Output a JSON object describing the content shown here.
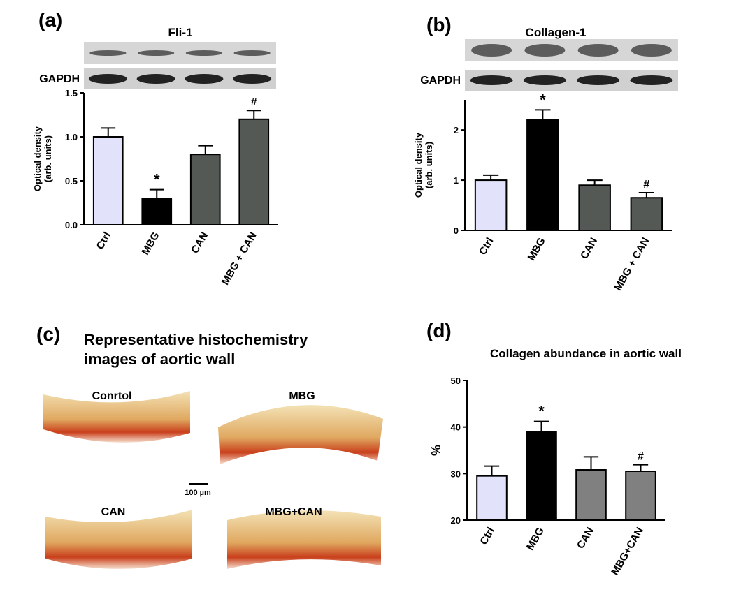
{
  "chart_data": [
    {
      "type": "bar",
      "label": "(a)",
      "title": "Fli-1",
      "blots": [
        "GAPDH"
      ],
      "categories": [
        "Ctrl",
        "MBG",
        "CAN",
        "MBG + CAN"
      ],
      "values": [
        1.0,
        0.3,
        0.8,
        1.2
      ],
      "errors": [
        0.1,
        0.1,
        0.1,
        0.1
      ],
      "annotations": [
        null,
        "*",
        null,
        "#"
      ],
      "colors": [
        "#e2e2fa",
        "#000000",
        "#555955",
        "#555955"
      ],
      "ylabel": [
        "Optical density",
        "(arb. units)"
      ],
      "ylim": [
        0,
        1.5
      ],
      "yticks": [
        {
          "value": 0,
          "label": "0.0"
        },
        {
          "value": 0.5,
          "label": "0.5"
        },
        {
          "value": 1,
          "label": "1.0"
        },
        {
          "value": 1.5,
          "label": "1.5"
        }
      ]
    },
    {
      "type": "bar",
      "label": "(b)",
      "title": "Collagen-1",
      "blots": [
        "GAPDH"
      ],
      "categories": [
        "Ctrl",
        "MBG",
        "CAN",
        "MBG + CAN"
      ],
      "values": [
        1.0,
        2.2,
        0.9,
        0.65
      ],
      "errors": [
        0.1,
        0.2,
        0.1,
        0.1
      ],
      "annotations": [
        null,
        "*",
        null,
        "#"
      ],
      "colors": [
        "#e2e2fa",
        "#000000",
        "#555955",
        "#555955"
      ],
      "ylabel": [
        "Optical density",
        "(arb. units)"
      ],
      "ylim": [
        0,
        2.6
      ],
      "yticks": [
        0,
        1,
        2
      ]
    },
    {
      "type": "bar",
      "label": "(d)",
      "title": "Collagen abundance in aortic wall",
      "categories": [
        "Ctrl",
        "MBG",
        "CAN",
        "MBG+CAN"
      ],
      "values": [
        29.5,
        39,
        30.8,
        30.5
      ],
      "errors": [
        2.1,
        2.2,
        2.8,
        1.4
      ],
      "annotations": [
        null,
        "*",
        null,
        "#"
      ],
      "colors": [
        "#e2e2fa",
        "#000000",
        "#808080",
        "#808080"
      ],
      "ylabel": [
        "%"
      ],
      "ylim": [
        20,
        50
      ],
      "yticks": [
        20,
        30,
        40,
        50
      ]
    }
  ],
  "histology": {
    "label": "(c)",
    "title": [
      "Representative histochemistry",
      "images of aortic wall"
    ],
    "images": [
      "Conrtol",
      "MBG",
      "CAN",
      "MBG+CAN"
    ],
    "scale_bar": "100 µm"
  }
}
